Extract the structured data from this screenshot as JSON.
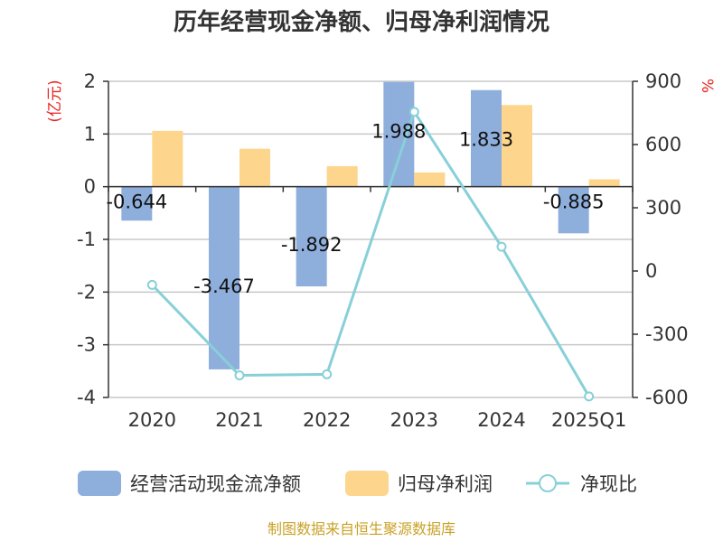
{
  "title": "历年经营现金净额、归母净利润情况",
  "source": "制图数据来自恒生聚源数据库",
  "colors": {
    "cashflow": "#8eaedc",
    "profit": "#fdd58c",
    "ratio": "#88d0d8",
    "axis_unit": "#e8251f",
    "source": "#c9a227"
  },
  "chart_data": {
    "type": "bar",
    "title": "历年经营现金净额、归母净利润情况",
    "categories": [
      "2020",
      "2021",
      "2022",
      "2023",
      "2024",
      "2025Q1"
    ],
    "y_left": {
      "unit": "(亿元)",
      "ylim": [
        -4,
        2
      ],
      "ticks": [
        2,
        1,
        0,
        -1,
        -2,
        -3,
        -4
      ],
      "tick_labels": [
        "2",
        "1",
        "0",
        "-1",
        "-2",
        "-3",
        "-4"
      ]
    },
    "y_right": {
      "unit": "%",
      "ylim": [
        -600,
        900
      ],
      "ticks": [
        900,
        600,
        300,
        0,
        -300,
        -600
      ],
      "tick_labels": [
        "900",
        "600",
        "300",
        "0",
        "-300",
        "-600"
      ]
    },
    "series": [
      {
        "name": "经营活动现金流净额",
        "type": "bar",
        "axis": "left",
        "values": [
          -0.644,
          -3.467,
          -1.892,
          1.988,
          1.833,
          -0.885
        ],
        "labels": [
          "-0.644",
          "-3.467",
          "-1.892",
          "1.988",
          "1.833",
          "-0.885"
        ]
      },
      {
        "name": "归母净利润",
        "type": "bar",
        "axis": "left",
        "values": [
          1.06,
          0.72,
          0.39,
          0.27,
          1.55,
          0.14
        ]
      },
      {
        "name": "净现比",
        "type": "line",
        "axis": "right",
        "values": [
          -66,
          -495,
          -490,
          755,
          115,
          -595
        ]
      }
    ],
    "grid": true,
    "legend": "bottom"
  }
}
